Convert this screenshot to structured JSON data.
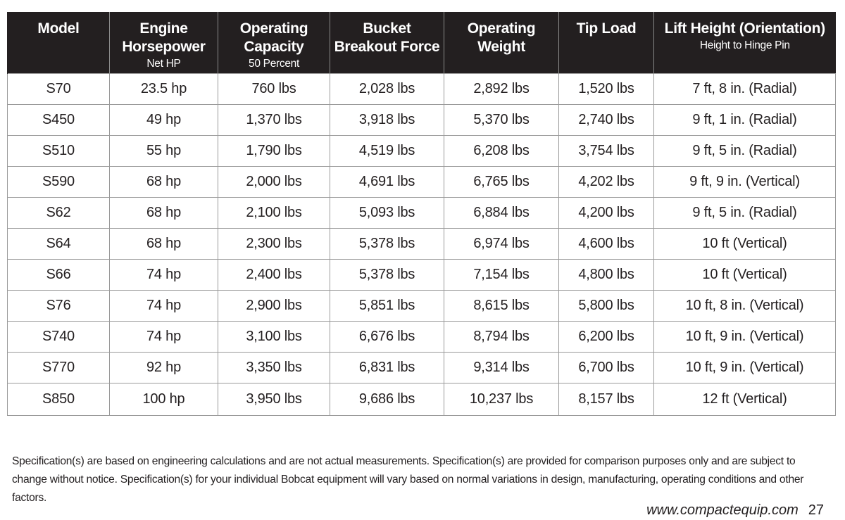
{
  "table": {
    "headers": [
      {
        "main": "Model",
        "sub": ""
      },
      {
        "main": "Engine Horsepower",
        "sub": "Net HP"
      },
      {
        "main": "Operating Capacity",
        "sub": "50 Percent"
      },
      {
        "main": "Bucket Breakout Force",
        "sub": ""
      },
      {
        "main": "Operating Weight",
        "sub": ""
      },
      {
        "main": "Tip Load",
        "sub": ""
      },
      {
        "main": "Lift Height (Orientation)",
        "sub": "Height to Hinge Pin"
      }
    ],
    "rows": [
      [
        "S70",
        "23.5 hp",
        "760 lbs",
        "2,028 lbs",
        "2,892 lbs",
        "1,520 lbs",
        "7 ft, 8 in. (Radial)"
      ],
      [
        "S450",
        "49 hp",
        "1,370 lbs",
        "3,918 lbs",
        "5,370 lbs",
        "2,740 lbs",
        "9 ft, 1 in. (Radial)"
      ],
      [
        "S510",
        "55 hp",
        "1,790 lbs",
        "4,519 lbs",
        "6,208 lbs",
        "3,754 lbs",
        "9 ft, 5 in. (Radial)"
      ],
      [
        "S590",
        "68 hp",
        "2,000 lbs",
        "4,691 lbs",
        "6,765 lbs",
        "4,202 lbs",
        "9 ft, 9 in. (Vertical)"
      ],
      [
        "S62",
        "68 hp",
        "2,100 lbs",
        "5,093 lbs",
        "6,884 lbs",
        "4,200 lbs",
        "9 ft, 5 in. (Radial)"
      ],
      [
        "S64",
        "68 hp",
        "2,300 lbs",
        "5,378 lbs",
        "6,974 lbs",
        "4,600 lbs",
        "10 ft (Vertical)"
      ],
      [
        "S66",
        "74 hp",
        "2,400 lbs",
        "5,378 lbs",
        "7,154 lbs",
        "4,800 lbs",
        "10 ft (Vertical)"
      ],
      [
        "S76",
        "74 hp",
        "2,900 lbs",
        "5,851 lbs",
        "8,615 lbs",
        "5,800 lbs",
        "10 ft, 8 in. (Vertical)"
      ],
      [
        "S740",
        "74 hp",
        "3,100 lbs",
        "6,676 lbs",
        "8,794 lbs",
        "6,200 lbs",
        "10 ft, 9 in. (Vertical)"
      ],
      [
        "S770",
        "92 hp",
        "3,350 lbs",
        "6,831 lbs",
        "9,314 lbs",
        "6,700 lbs",
        "10 ft, 9 in. (Vertical)"
      ],
      [
        "S850",
        "100 hp",
        "3,950 lbs",
        "9,686 lbs",
        "10,237 lbs",
        "8,157 lbs",
        "12 ft (Vertical)"
      ]
    ]
  },
  "disclaimer": "Specification(s) are based on engineering calculations and are not actual measurements. Specification(s) are provided for comparison purposes only and are subject to change without notice. Specification(s) for your individual Bobcat equipment will vary based on normal variations in design, manufacturing, operating conditions and other factors.",
  "footer": {
    "url": "www.compactequip.com",
    "page": "27"
  },
  "colors": {
    "header_bg": "#231f20",
    "header_text": "#ffffff",
    "grid_line": "#9a9a9a",
    "body_text": "#231f20"
  }
}
